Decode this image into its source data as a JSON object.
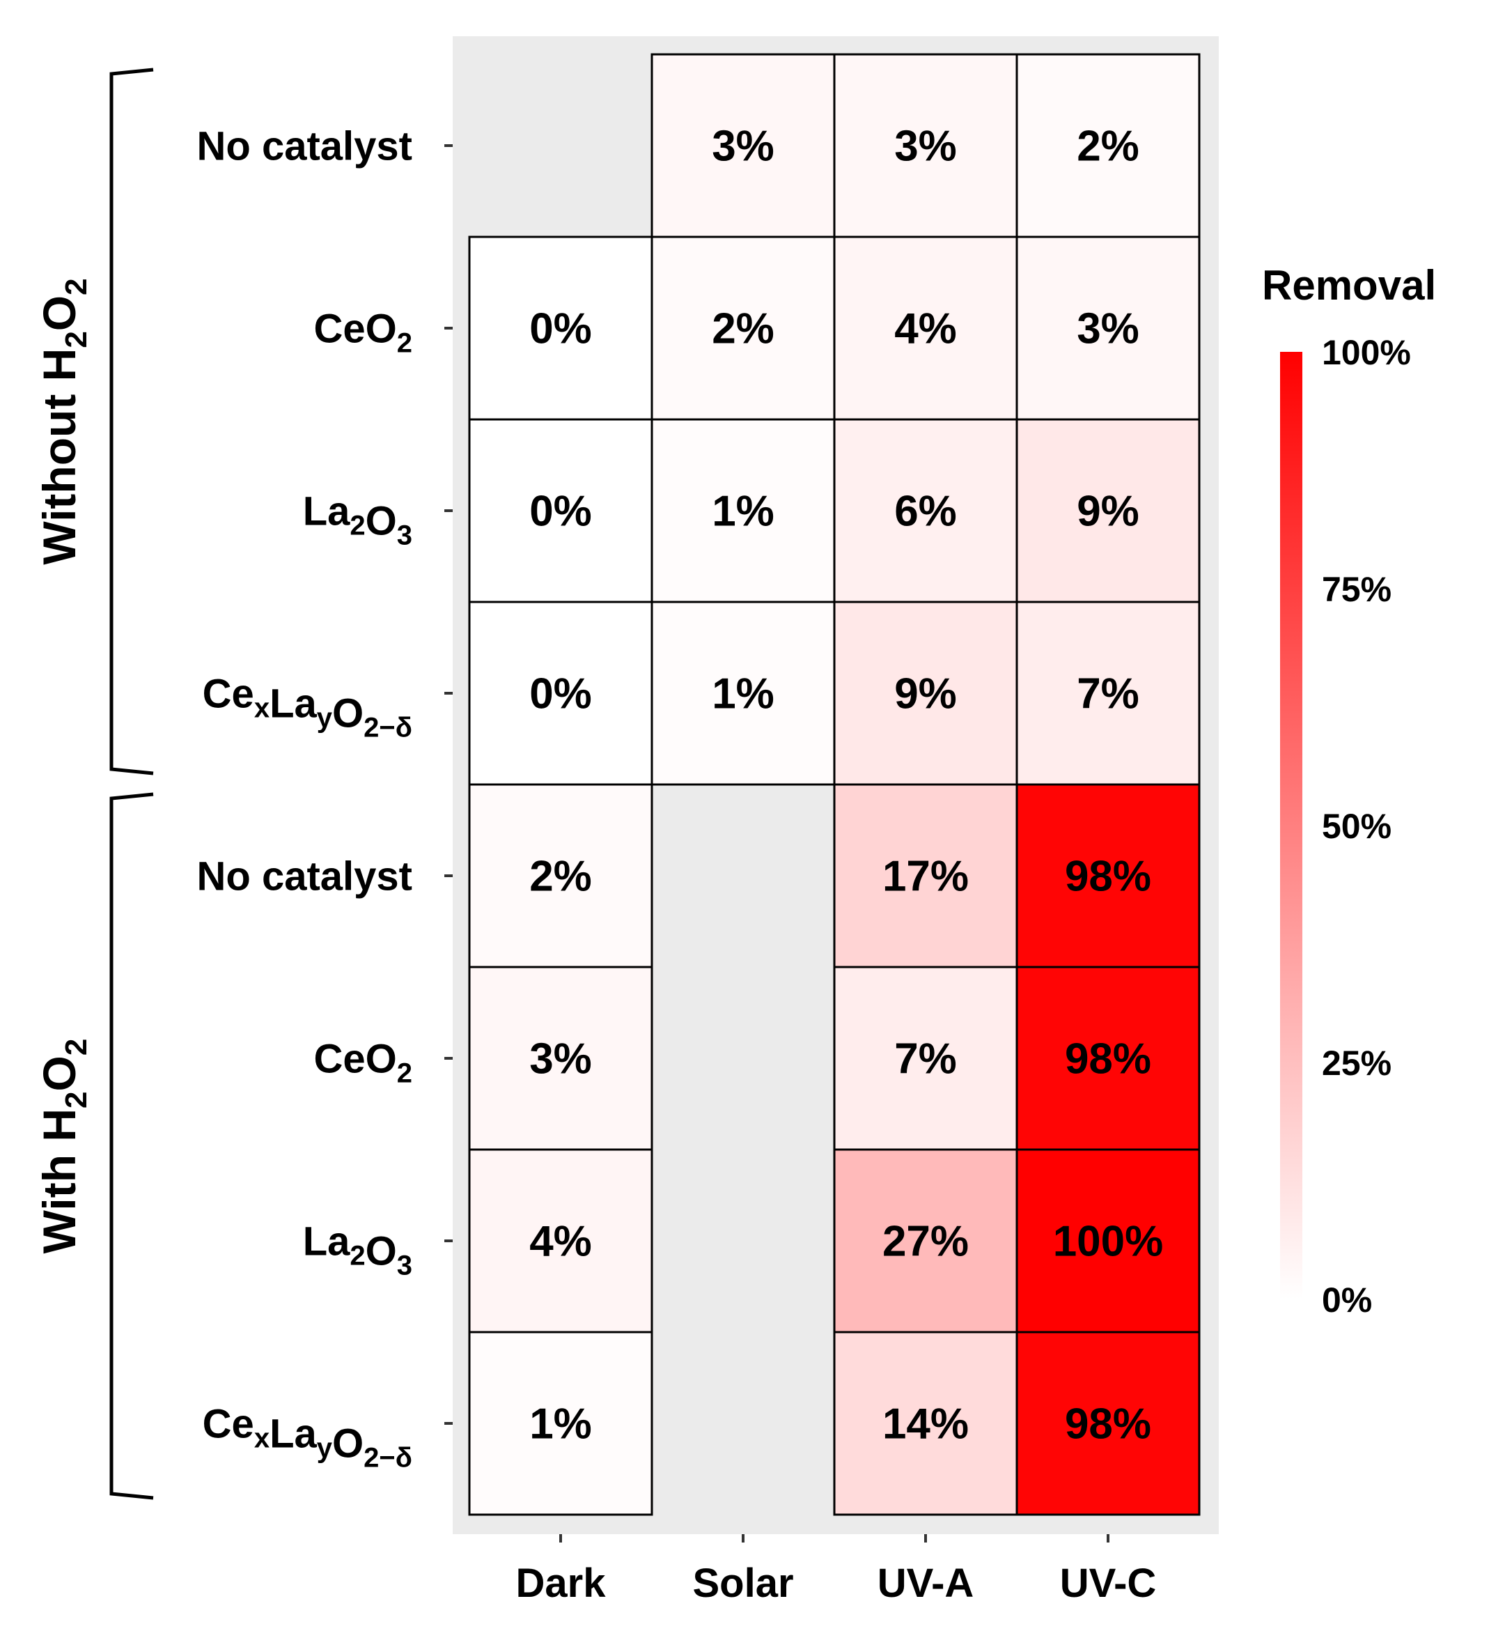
{
  "chart_data": {
    "type": "heatmap",
    "legend_title": "Removal",
    "legend_ticks": [
      "100%",
      "75%",
      "50%",
      "25%",
      "0%"
    ],
    "color_low": "#ffffff",
    "color_high": "#ff0000",
    "panel_background": "#ebebeb",
    "columns": [
      "Dark",
      "Solar",
      "UV-A",
      "UV-C"
    ],
    "groups": [
      {
        "label_main": "Without H",
        "label_sub": "2",
        "label_tail": "O",
        "label_sub2": "2",
        "rows": [
          {
            "label": [
              {
                "t": "No catalyst",
                "s": ""
              }
            ],
            "values": [
              null,
              3,
              3,
              2
            ]
          },
          {
            "label": [
              {
                "t": "CeO",
                "s": "2"
              }
            ],
            "values": [
              0,
              2,
              4,
              3
            ]
          },
          {
            "label": [
              {
                "t": "La",
                "s": "2"
              },
              {
                "t": "O",
                "s": "3"
              }
            ],
            "values": [
              0,
              1,
              6,
              9
            ]
          },
          {
            "label": [
              {
                "t": "Ce",
                "s": "x"
              },
              {
                "t": "La",
                "s": "y"
              },
              {
                "t": "O",
                "s": "2−δ"
              }
            ],
            "values": [
              0,
              1,
              9,
              7
            ]
          }
        ]
      },
      {
        "label_main": "With H",
        "label_sub": "2",
        "label_tail": "O",
        "label_sub2": "2",
        "rows": [
          {
            "label": [
              {
                "t": "No catalyst",
                "s": ""
              }
            ],
            "values": [
              2,
              null,
              17,
              98
            ]
          },
          {
            "label": [
              {
                "t": "CeO",
                "s": "2"
              }
            ],
            "values": [
              3,
              null,
              7,
              98
            ]
          },
          {
            "label": [
              {
                "t": "La",
                "s": "2"
              },
              {
                "t": "O",
                "s": "3"
              }
            ],
            "values": [
              4,
              null,
              27,
              100
            ]
          },
          {
            "label": [
              {
                "t": "Ce",
                "s": "x"
              },
              {
                "t": "La",
                "s": "y"
              },
              {
                "t": "O",
                "s": "2−δ"
              }
            ],
            "values": [
              1,
              null,
              14,
              98
            ]
          }
        ]
      }
    ]
  }
}
